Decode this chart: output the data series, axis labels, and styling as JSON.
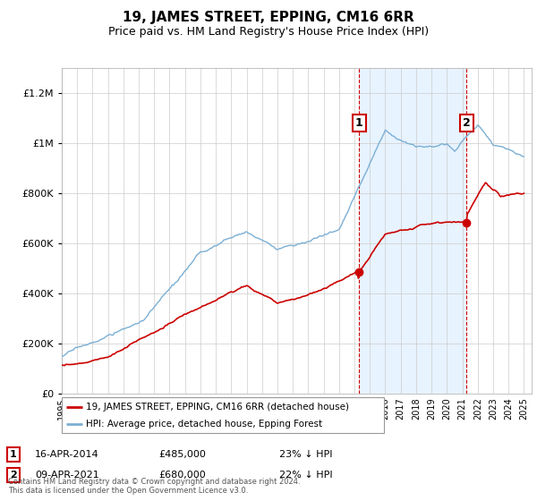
{
  "title": "19, JAMES STREET, EPPING, CM16 6RR",
  "subtitle": "Price paid vs. HM Land Registry's House Price Index (HPI)",
  "red_label": "19, JAMES STREET, EPPING, CM16 6RR (detached house)",
  "blue_label": "HPI: Average price, detached house, Epping Forest",
  "annotation1_date": "16-APR-2014",
  "annotation1_price": "£485,000",
  "annotation1_pct": "23% ↓ HPI",
  "annotation1_year": 2014.29,
  "annotation1_value": 485000,
  "annotation2_date": "09-APR-2021",
  "annotation2_price": "£680,000",
  "annotation2_pct": "22% ↓ HPI",
  "annotation2_year": 2021.27,
  "annotation2_value": 680000,
  "footer1": "Contains HM Land Registry data © Crown copyright and database right 2024.",
  "footer2": "This data is licensed under the Open Government Licence v3.0.",
  "ylim_min": 0,
  "ylim_max": 1300000,
  "xlim_min": 1995,
  "xlim_max": 2025.5,
  "background_color": "#ffffff",
  "red_color": "#cc0000",
  "blue_color": "#7bafd4",
  "shade_color": "#ddeeff",
  "grid_color": "#cccccc",
  "title_fontsize": 11,
  "subtitle_fontsize": 9
}
